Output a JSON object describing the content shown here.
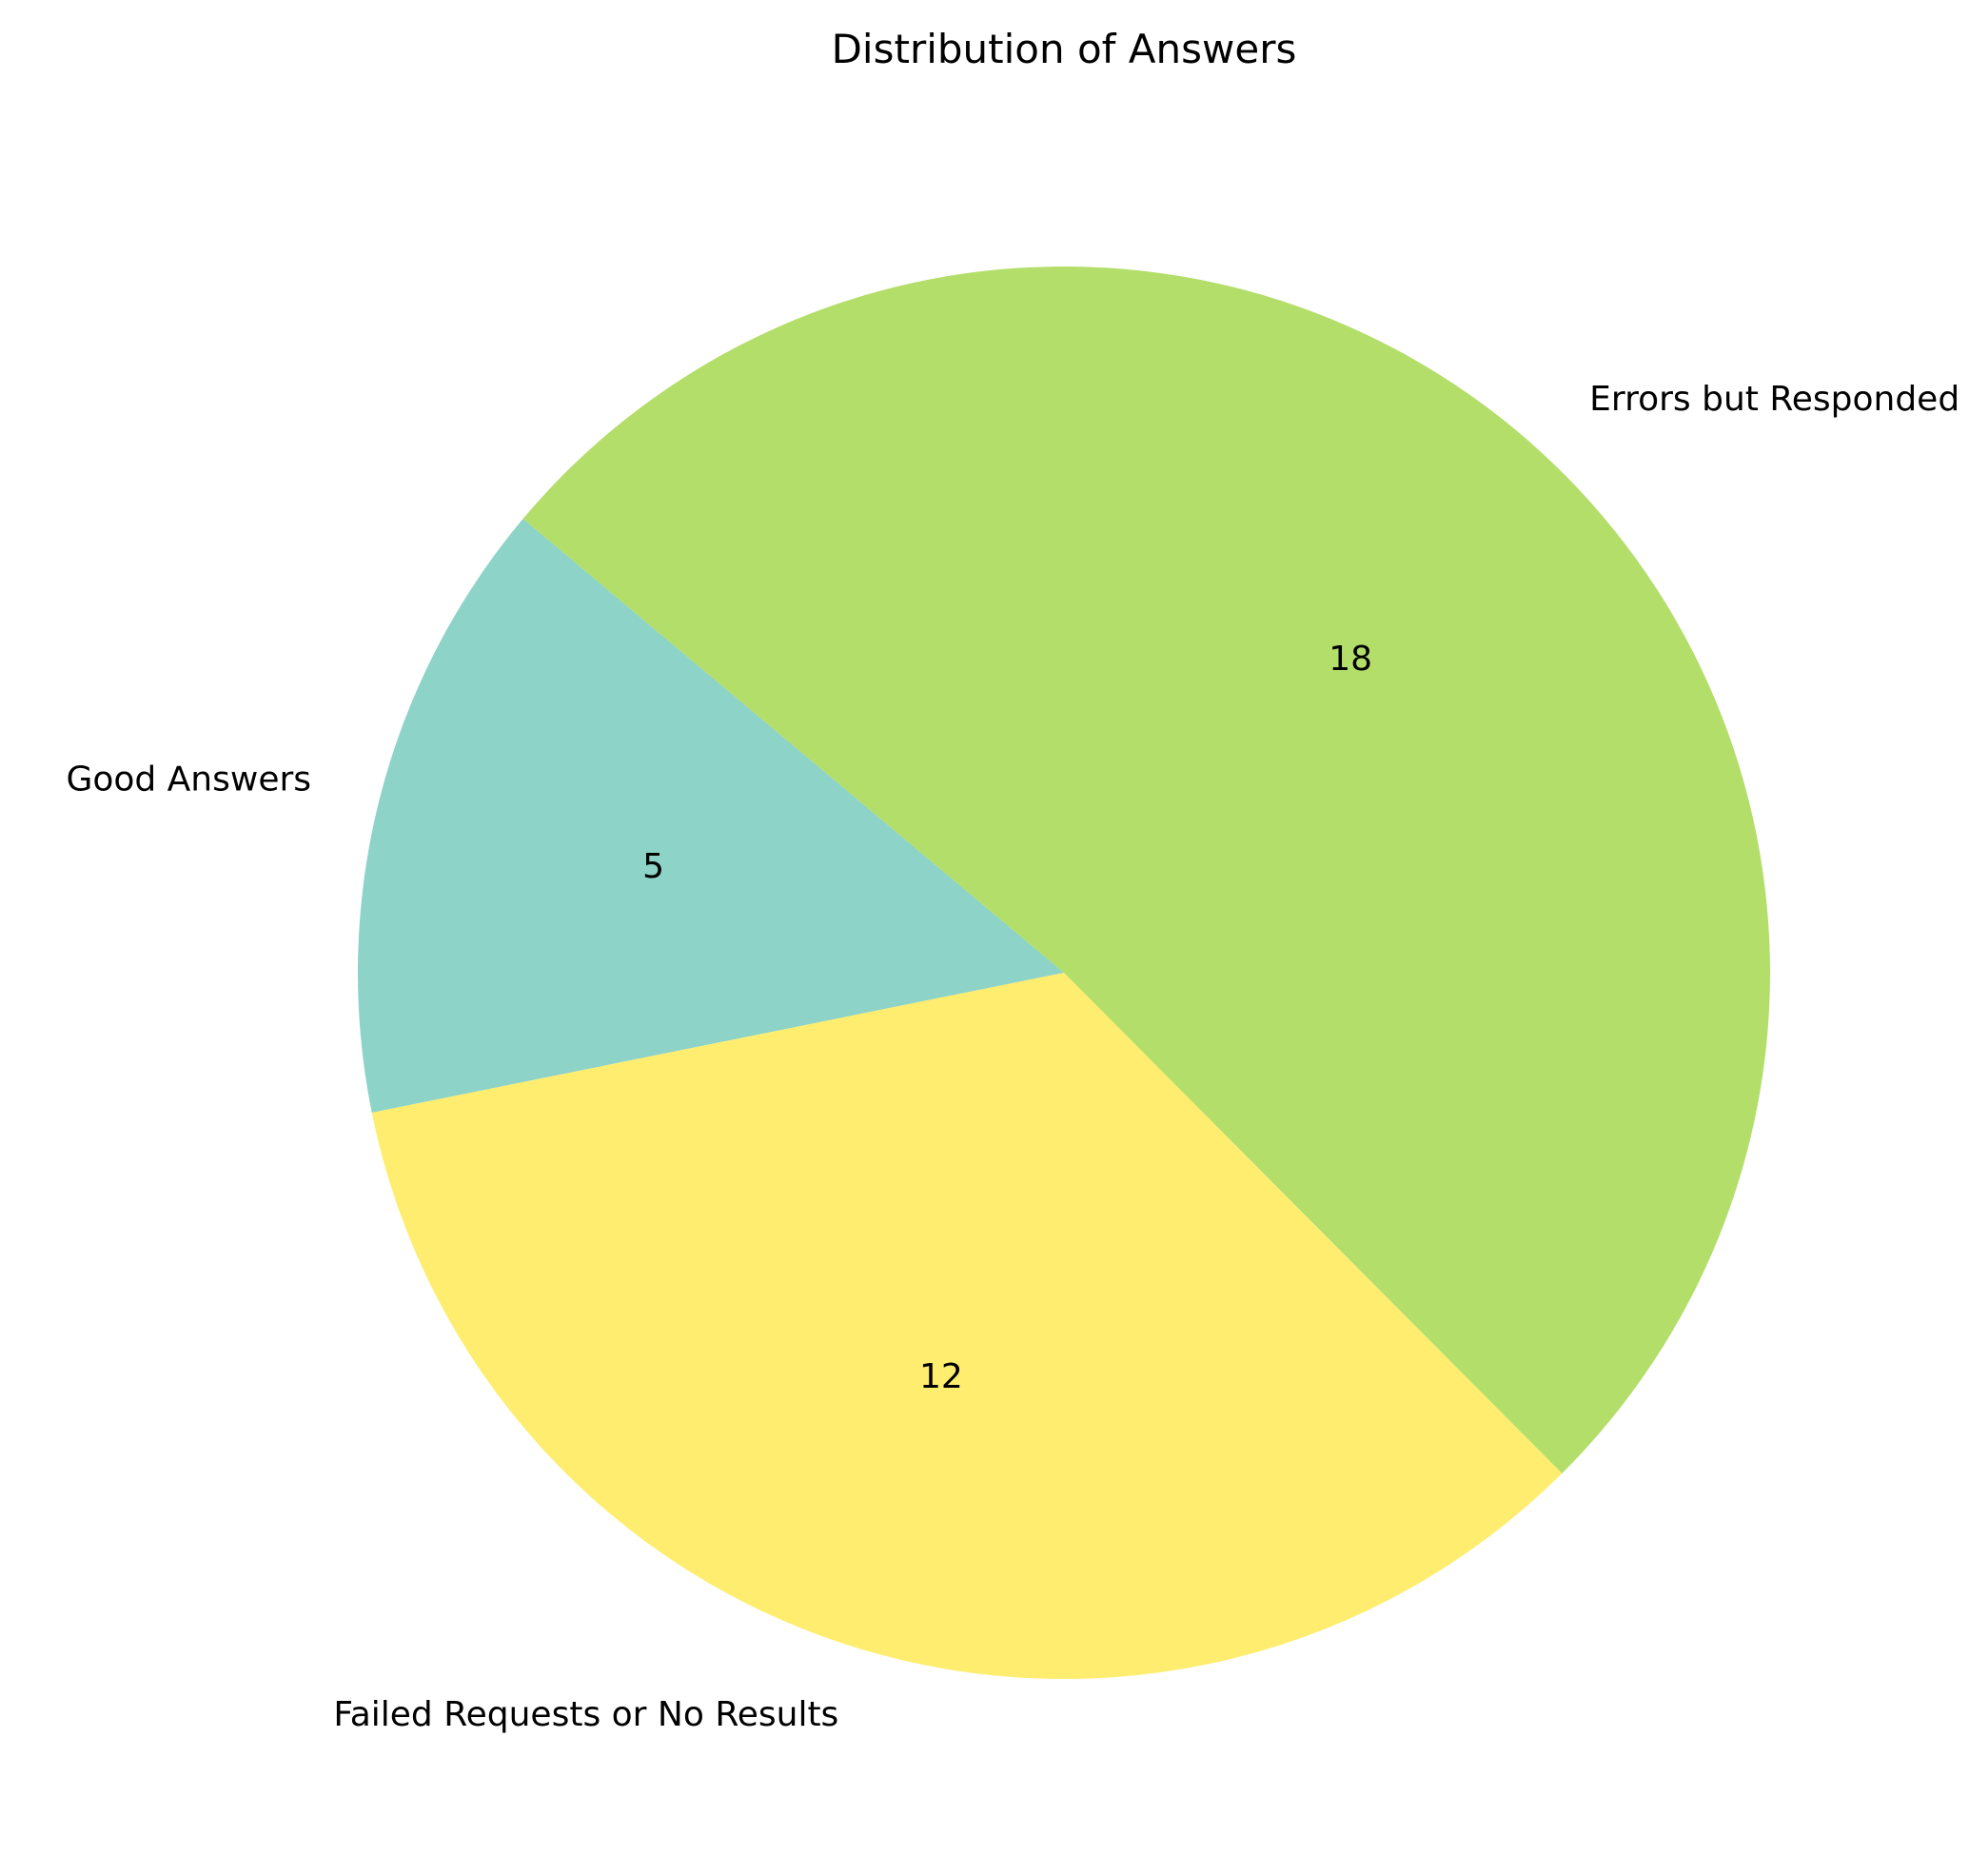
{
  "chart_data": {
    "type": "pie",
    "title": "Distribution of Answers",
    "slices": [
      {
        "label": "Good Answers",
        "value": 5,
        "value_label": "5",
        "color": "#8dd3c7"
      },
      {
        "label": "Failed Requests or No Results",
        "value": 12,
        "value_label": "12",
        "color": "#ffed6f"
      },
      {
        "label": "Errors but Responded",
        "value": 18,
        "value_label": "18",
        "color": "#b3de69"
      }
    ],
    "start_angle_deg": 140,
    "direction": "counterclockwise",
    "legend": "none"
  }
}
